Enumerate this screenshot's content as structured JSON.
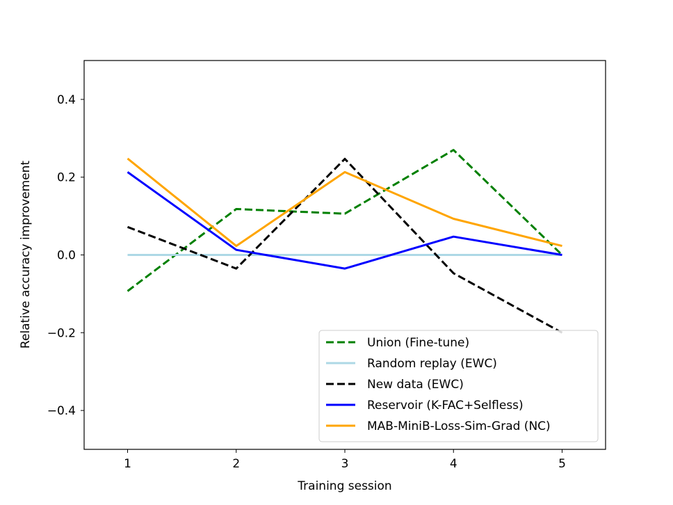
{
  "chart_data": {
    "type": "line",
    "title": "",
    "xlabel": "Training session",
    "ylabel": "Relative accuracy improvement",
    "x": [
      1,
      2,
      3,
      4,
      5
    ],
    "x_ticks": [
      1,
      2,
      3,
      4,
      5
    ],
    "x_tick_labels": [
      "1",
      "2",
      "3",
      "4",
      "5"
    ],
    "xlim": [
      0.6,
      5.4
    ],
    "ylim": [
      -0.5,
      0.5
    ],
    "y_ticks": [
      -0.4,
      -0.2,
      0.0,
      0.2,
      0.4
    ],
    "y_tick_labels": [
      "−0.4",
      "−0.2",
      "0.0",
      "0.2",
      "0.4"
    ],
    "grid": false,
    "legend_position": "lower-right",
    "series": [
      {
        "name": "Union (Fine-tune)",
        "color": "#008000",
        "dash": "dashed",
        "values": [
          -0.093,
          0.118,
          0.106,
          0.27,
          0.0
        ]
      },
      {
        "name": "Random replay (EWC)",
        "color": "#add8e6",
        "dash": "solid",
        "values": [
          0.0,
          0.0,
          0.0,
          0.0,
          0.0
        ]
      },
      {
        "name": "New data (EWC)",
        "color": "#000000",
        "dash": "dashed",
        "values": [
          0.072,
          -0.035,
          0.247,
          -0.047,
          -0.2
        ]
      },
      {
        "name": "Reservoir (K-FAC+Selfless)",
        "color": "#0000ff",
        "dash": "solid",
        "values": [
          0.213,
          0.013,
          -0.035,
          0.047,
          0.0
        ]
      },
      {
        "name": "MAB-MiniB-Loss-Sim-Grad (NC)",
        "color": "#ffa500",
        "dash": "solid",
        "values": [
          0.248,
          0.023,
          0.213,
          0.093,
          0.023
        ]
      }
    ]
  }
}
